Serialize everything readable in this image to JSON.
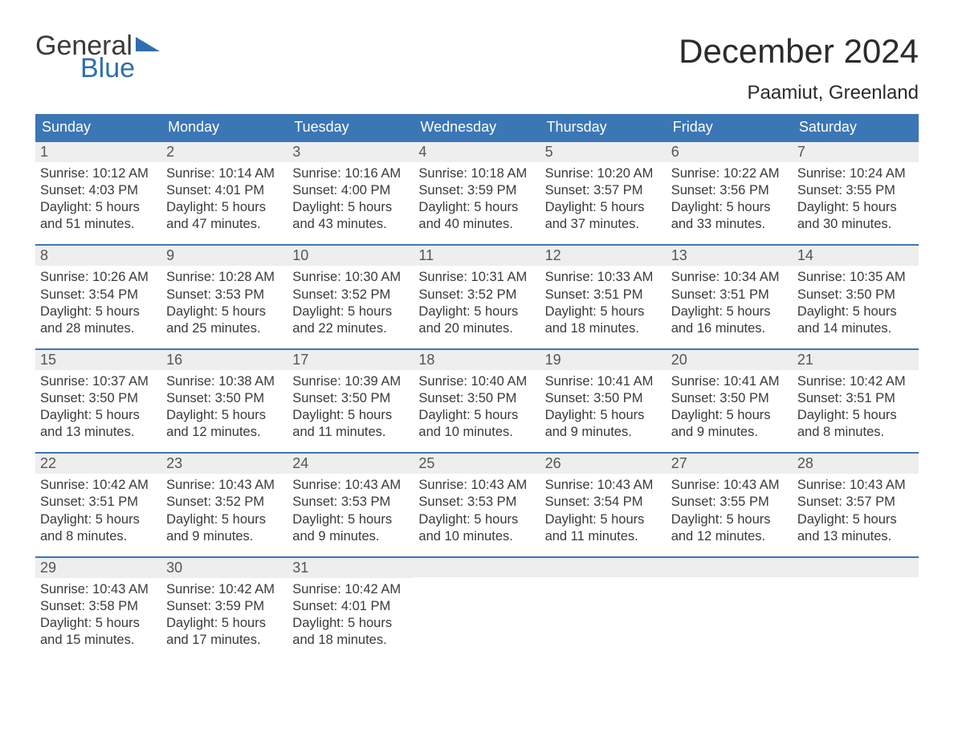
{
  "logo": {
    "word1": "General",
    "word2": "Blue",
    "word1_color": "#3a3a3a",
    "word2_color": "#2f6fb0",
    "flag_color": "#2f6fb0",
    "fontsize": 34
  },
  "title": {
    "month": "December 2024",
    "month_fontsize": 42,
    "location": "Paamiut, Greenland",
    "location_fontsize": 24,
    "text_color": "#2b2b2b"
  },
  "calendar": {
    "header_bg": "#3b76b5",
    "header_text_color": "#ffffff",
    "week_border_color": "#3b76b5",
    "daynum_bg": "#eeeeee",
    "daynum_color": "#555555",
    "body_text_color": "#3a3a3a",
    "background_color": "#ffffff",
    "dow": [
      "Sunday",
      "Monday",
      "Tuesday",
      "Wednesday",
      "Thursday",
      "Friday",
      "Saturday"
    ],
    "weeks": [
      [
        {
          "n": "1",
          "sunrise": "Sunrise: 10:12 AM",
          "sunset": "Sunset: 4:03 PM",
          "d1": "Daylight: 5 hours",
          "d2": "and 51 minutes."
        },
        {
          "n": "2",
          "sunrise": "Sunrise: 10:14 AM",
          "sunset": "Sunset: 4:01 PM",
          "d1": "Daylight: 5 hours",
          "d2": "and 47 minutes."
        },
        {
          "n": "3",
          "sunrise": "Sunrise: 10:16 AM",
          "sunset": "Sunset: 4:00 PM",
          "d1": "Daylight: 5 hours",
          "d2": "and 43 minutes."
        },
        {
          "n": "4",
          "sunrise": "Sunrise: 10:18 AM",
          "sunset": "Sunset: 3:59 PM",
          "d1": "Daylight: 5 hours",
          "d2": "and 40 minutes."
        },
        {
          "n": "5",
          "sunrise": "Sunrise: 10:20 AM",
          "sunset": "Sunset: 3:57 PM",
          "d1": "Daylight: 5 hours",
          "d2": "and 37 minutes."
        },
        {
          "n": "6",
          "sunrise": "Sunrise: 10:22 AM",
          "sunset": "Sunset: 3:56 PM",
          "d1": "Daylight: 5 hours",
          "d2": "and 33 minutes."
        },
        {
          "n": "7",
          "sunrise": "Sunrise: 10:24 AM",
          "sunset": "Sunset: 3:55 PM",
          "d1": "Daylight: 5 hours",
          "d2": "and 30 minutes."
        }
      ],
      [
        {
          "n": "8",
          "sunrise": "Sunrise: 10:26 AM",
          "sunset": "Sunset: 3:54 PM",
          "d1": "Daylight: 5 hours",
          "d2": "and 28 minutes."
        },
        {
          "n": "9",
          "sunrise": "Sunrise: 10:28 AM",
          "sunset": "Sunset: 3:53 PM",
          "d1": "Daylight: 5 hours",
          "d2": "and 25 minutes."
        },
        {
          "n": "10",
          "sunrise": "Sunrise: 10:30 AM",
          "sunset": "Sunset: 3:52 PM",
          "d1": "Daylight: 5 hours",
          "d2": "and 22 minutes."
        },
        {
          "n": "11",
          "sunrise": "Sunrise: 10:31 AM",
          "sunset": "Sunset: 3:52 PM",
          "d1": "Daylight: 5 hours",
          "d2": "and 20 minutes."
        },
        {
          "n": "12",
          "sunrise": "Sunrise: 10:33 AM",
          "sunset": "Sunset: 3:51 PM",
          "d1": "Daylight: 5 hours",
          "d2": "and 18 minutes."
        },
        {
          "n": "13",
          "sunrise": "Sunrise: 10:34 AM",
          "sunset": "Sunset: 3:51 PM",
          "d1": "Daylight: 5 hours",
          "d2": "and 16 minutes."
        },
        {
          "n": "14",
          "sunrise": "Sunrise: 10:35 AM",
          "sunset": "Sunset: 3:50 PM",
          "d1": "Daylight: 5 hours",
          "d2": "and 14 minutes."
        }
      ],
      [
        {
          "n": "15",
          "sunrise": "Sunrise: 10:37 AM",
          "sunset": "Sunset: 3:50 PM",
          "d1": "Daylight: 5 hours",
          "d2": "and 13 minutes."
        },
        {
          "n": "16",
          "sunrise": "Sunrise: 10:38 AM",
          "sunset": "Sunset: 3:50 PM",
          "d1": "Daylight: 5 hours",
          "d2": "and 12 minutes."
        },
        {
          "n": "17",
          "sunrise": "Sunrise: 10:39 AM",
          "sunset": "Sunset: 3:50 PM",
          "d1": "Daylight: 5 hours",
          "d2": "and 11 minutes."
        },
        {
          "n": "18",
          "sunrise": "Sunrise: 10:40 AM",
          "sunset": "Sunset: 3:50 PM",
          "d1": "Daylight: 5 hours",
          "d2": "and 10 minutes."
        },
        {
          "n": "19",
          "sunrise": "Sunrise: 10:41 AM",
          "sunset": "Sunset: 3:50 PM",
          "d1": "Daylight: 5 hours",
          "d2": "and 9 minutes."
        },
        {
          "n": "20",
          "sunrise": "Sunrise: 10:41 AM",
          "sunset": "Sunset: 3:50 PM",
          "d1": "Daylight: 5 hours",
          "d2": "and 9 minutes."
        },
        {
          "n": "21",
          "sunrise": "Sunrise: 10:42 AM",
          "sunset": "Sunset: 3:51 PM",
          "d1": "Daylight: 5 hours",
          "d2": "and 8 minutes."
        }
      ],
      [
        {
          "n": "22",
          "sunrise": "Sunrise: 10:42 AM",
          "sunset": "Sunset: 3:51 PM",
          "d1": "Daylight: 5 hours",
          "d2": "and 8 minutes."
        },
        {
          "n": "23",
          "sunrise": "Sunrise: 10:43 AM",
          "sunset": "Sunset: 3:52 PM",
          "d1": "Daylight: 5 hours",
          "d2": "and 9 minutes."
        },
        {
          "n": "24",
          "sunrise": "Sunrise: 10:43 AM",
          "sunset": "Sunset: 3:53 PM",
          "d1": "Daylight: 5 hours",
          "d2": "and 9 minutes."
        },
        {
          "n": "25",
          "sunrise": "Sunrise: 10:43 AM",
          "sunset": "Sunset: 3:53 PM",
          "d1": "Daylight: 5 hours",
          "d2": "and 10 minutes."
        },
        {
          "n": "26",
          "sunrise": "Sunrise: 10:43 AM",
          "sunset": "Sunset: 3:54 PM",
          "d1": "Daylight: 5 hours",
          "d2": "and 11 minutes."
        },
        {
          "n": "27",
          "sunrise": "Sunrise: 10:43 AM",
          "sunset": "Sunset: 3:55 PM",
          "d1": "Daylight: 5 hours",
          "d2": "and 12 minutes."
        },
        {
          "n": "28",
          "sunrise": "Sunrise: 10:43 AM",
          "sunset": "Sunset: 3:57 PM",
          "d1": "Daylight: 5 hours",
          "d2": "and 13 minutes."
        }
      ],
      [
        {
          "n": "29",
          "sunrise": "Sunrise: 10:43 AM",
          "sunset": "Sunset: 3:58 PM",
          "d1": "Daylight: 5 hours",
          "d2": "and 15 minutes."
        },
        {
          "n": "30",
          "sunrise": "Sunrise: 10:42 AM",
          "sunset": "Sunset: 3:59 PM",
          "d1": "Daylight: 5 hours",
          "d2": "and 17 minutes."
        },
        {
          "n": "31",
          "sunrise": "Sunrise: 10:42 AM",
          "sunset": "Sunset: 4:01 PM",
          "d1": "Daylight: 5 hours",
          "d2": "and 18 minutes."
        },
        {
          "n": "",
          "sunrise": "",
          "sunset": "",
          "d1": "",
          "d2": ""
        },
        {
          "n": "",
          "sunrise": "",
          "sunset": "",
          "d1": "",
          "d2": ""
        },
        {
          "n": "",
          "sunrise": "",
          "sunset": "",
          "d1": "",
          "d2": ""
        },
        {
          "n": "",
          "sunrise": "",
          "sunset": "",
          "d1": "",
          "d2": ""
        }
      ]
    ]
  }
}
